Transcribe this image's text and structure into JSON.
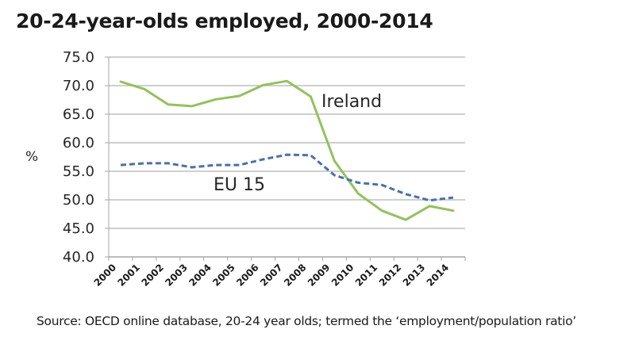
{
  "chart_data": {
    "type": "line",
    "title": "20-24-year-olds employed, 2000-2014",
    "xlabel": "",
    "ylabel": "%",
    "ylim": [
      40,
      75
    ],
    "yticks": [
      "40.0",
      "45.0",
      "50.0",
      "55.0",
      "60.0",
      "65.0",
      "70.0",
      "75.0"
    ],
    "grid": true,
    "legend": "inline labels",
    "categories": [
      "2000",
      "2001",
      "2002",
      "2003",
      "2004",
      "2005",
      "2006",
      "2007",
      "2008",
      "2009",
      "2010",
      "2011",
      "2012",
      "2013",
      "2014"
    ],
    "series": [
      {
        "name": "Ireland",
        "color": "#92c35a",
        "style": "solid",
        "values": [
          70.7,
          69.4,
          66.7,
          66.4,
          67.6,
          68.2,
          70.1,
          70.8,
          68.1,
          56.8,
          51.1,
          48.1,
          46.5,
          48.9,
          48.1
        ]
      },
      {
        "name": "EU 15",
        "color": "#4a6fb0",
        "style": "dashed",
        "values": [
          56.1,
          56.4,
          56.4,
          55.7,
          56.1,
          56.1,
          57.1,
          57.9,
          57.8,
          54.3,
          53.0,
          52.6,
          51.0,
          49.9,
          50.4
        ]
      }
    ],
    "source": "Source: OECD online database, 20-24 year olds; termed the ‘employment/population ratio’"
  }
}
